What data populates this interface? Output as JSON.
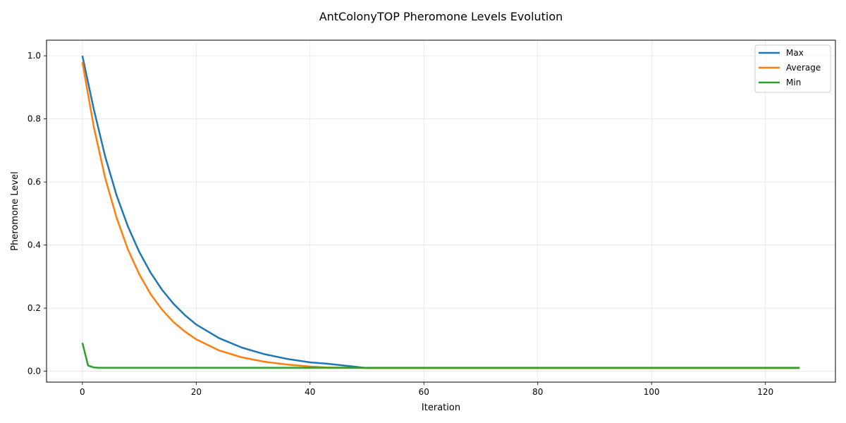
{
  "chart_data": {
    "type": "line",
    "title": "AntColonyTOP Pheromone Levels Evolution",
    "xlabel": "Iteration",
    "ylabel": "Pheromone Level",
    "xlim": [
      -6.3,
      132.3
    ],
    "ylim": [
      -0.0345,
      1.0495
    ],
    "xticks": [
      0,
      20,
      40,
      60,
      80,
      100,
      120
    ],
    "yticks": [
      0.0,
      0.2,
      0.4,
      0.6,
      0.8,
      1.0
    ],
    "xtick_labels": [
      "0",
      "20",
      "40",
      "60",
      "80",
      "100",
      "120"
    ],
    "ytick_labels": [
      "0.0",
      "0.2",
      "0.4",
      "0.6",
      "0.8",
      "1.0"
    ],
    "grid": true,
    "legend_position": "top-right",
    "series": [
      {
        "name": "Max",
        "color": "#1f77b4",
        "x": [
          0,
          2,
          4,
          6,
          8,
          10,
          12,
          14,
          16,
          18,
          20,
          24,
          28,
          32,
          36,
          40,
          43,
          50,
          60,
          70,
          80,
          90,
          100,
          110,
          120,
          126
        ],
        "y": [
          1.0,
          0.831,
          0.681,
          0.558,
          0.459,
          0.378,
          0.312,
          0.258,
          0.214,
          0.178,
          0.148,
          0.105,
          0.075,
          0.054,
          0.039,
          0.028,
          0.024,
          0.01,
          0.01,
          0.01,
          0.01,
          0.01,
          0.01,
          0.01,
          0.01,
          0.01
        ]
      },
      {
        "name": "Average",
        "color": "#ff7f0e",
        "x": [
          0,
          2,
          4,
          6,
          8,
          10,
          12,
          14,
          16,
          18,
          20,
          24,
          28,
          32,
          36,
          40,
          43,
          50,
          60,
          70,
          80,
          90,
          100,
          110,
          120,
          126
        ],
        "y": [
          0.98,
          0.775,
          0.613,
          0.487,
          0.386,
          0.307,
          0.244,
          0.195,
          0.156,
          0.126,
          0.101,
          0.066,
          0.044,
          0.03,
          0.021,
          0.015,
          0.012,
          0.01,
          0.01,
          0.01,
          0.01,
          0.01,
          0.01,
          0.01,
          0.01,
          0.01
        ]
      },
      {
        "name": "Min",
        "color": "#2ca02c",
        "x": [
          0,
          1,
          2,
          3,
          5,
          10,
          20,
          40,
          60,
          80,
          100,
          120,
          126
        ],
        "y": [
          0.09,
          0.018,
          0.012,
          0.011,
          0.011,
          0.011,
          0.011,
          0.011,
          0.011,
          0.011,
          0.011,
          0.011,
          0.011
        ]
      }
    ]
  }
}
